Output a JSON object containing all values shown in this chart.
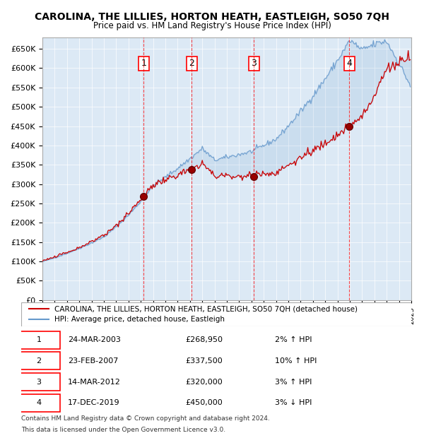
{
  "title": "CAROLINA, THE LILLIES, HORTON HEATH, EASTLEIGH, SO50 7QH",
  "subtitle": "Price paid vs. HM Land Registry's House Price Index (HPI)",
  "red_line_label": "CAROLINA, THE LILLIES, HORTON HEATH, EASTLEIGH, SO50 7QH (detached house)",
  "blue_line_label": "HPI: Average price, detached house, Eastleigh",
  "sale_markers": [
    {
      "num": 1,
      "date": "24-MAR-2003",
      "price": 268950,
      "year": 2003.23,
      "hpi_pct": "2%",
      "direction": "↑"
    },
    {
      "num": 2,
      "date": "23-FEB-2007",
      "price": 337500,
      "year": 2007.14,
      "hpi_pct": "10%",
      "direction": "↑"
    },
    {
      "num": 3,
      "date": "14-MAR-2012",
      "price": 320000,
      "year": 2012.21,
      "hpi_pct": "3%",
      "direction": "↑"
    },
    {
      "num": 4,
      "date": "17-DEC-2019",
      "price": 450000,
      "year": 2019.96,
      "hpi_pct": "3%",
      "direction": "↓"
    }
  ],
  "footnote1": "Contains HM Land Registry data © Crown copyright and database right 2024.",
  "footnote2": "This data is licensed under the Open Government Licence v3.0.",
  "ylim": [
    0,
    680000
  ],
  "xlim_start": 1995,
  "xlim_end": 2025,
  "background_color": "#dce9f5",
  "plot_bg_color": "#dce9f5",
  "red_color": "#cc0000",
  "blue_color": "#6699cc",
  "hatch_color": "#b0c4de"
}
